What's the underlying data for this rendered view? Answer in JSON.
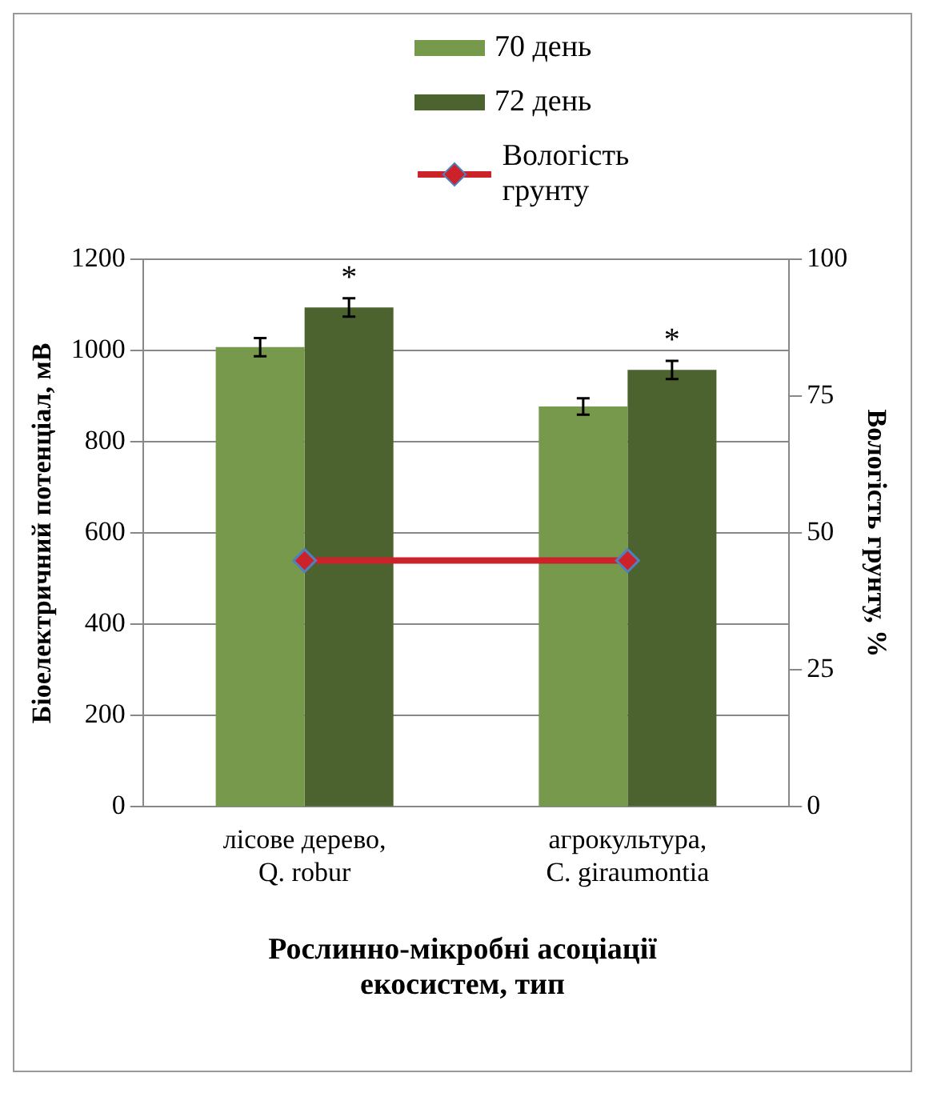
{
  "chart_data": {
    "type": "bar",
    "categories": [
      "лісове дерево, Q. robur",
      "агрокультура, C. giraumontia"
    ],
    "series": [
      {
        "name": "70 день",
        "color": "#77994b",
        "values": [
          1008,
          878
        ],
        "errors": [
          20,
          18
        ]
      },
      {
        "name": "72 день",
        "color": "#4c6330",
        "values": [
          1095,
          958
        ],
        "errors": [
          20,
          20
        ]
      },
      {
        "name": "Вологість грунту",
        "type": "line",
        "axis": "y2",
        "color": "#cc2229",
        "marker": "diamond",
        "values": [
          45,
          45
        ]
      }
    ],
    "xlabel": "Рослинно-мікробні асоціації екосистем, тип",
    "ylabel": "Біоелектричний потенціал, мВ",
    "y2label": "Вологість грунту, %",
    "ylim": [
      0,
      1200
    ],
    "yticks": [
      0,
      200,
      400,
      600,
      800,
      1000,
      1200
    ],
    "y2lim": [
      0,
      100
    ],
    "y2ticks": [
      0,
      25,
      50,
      75,
      100
    ],
    "grid": "y",
    "legend": "top right",
    "annotations": [
      "*",
      "*"
    ]
  }
}
